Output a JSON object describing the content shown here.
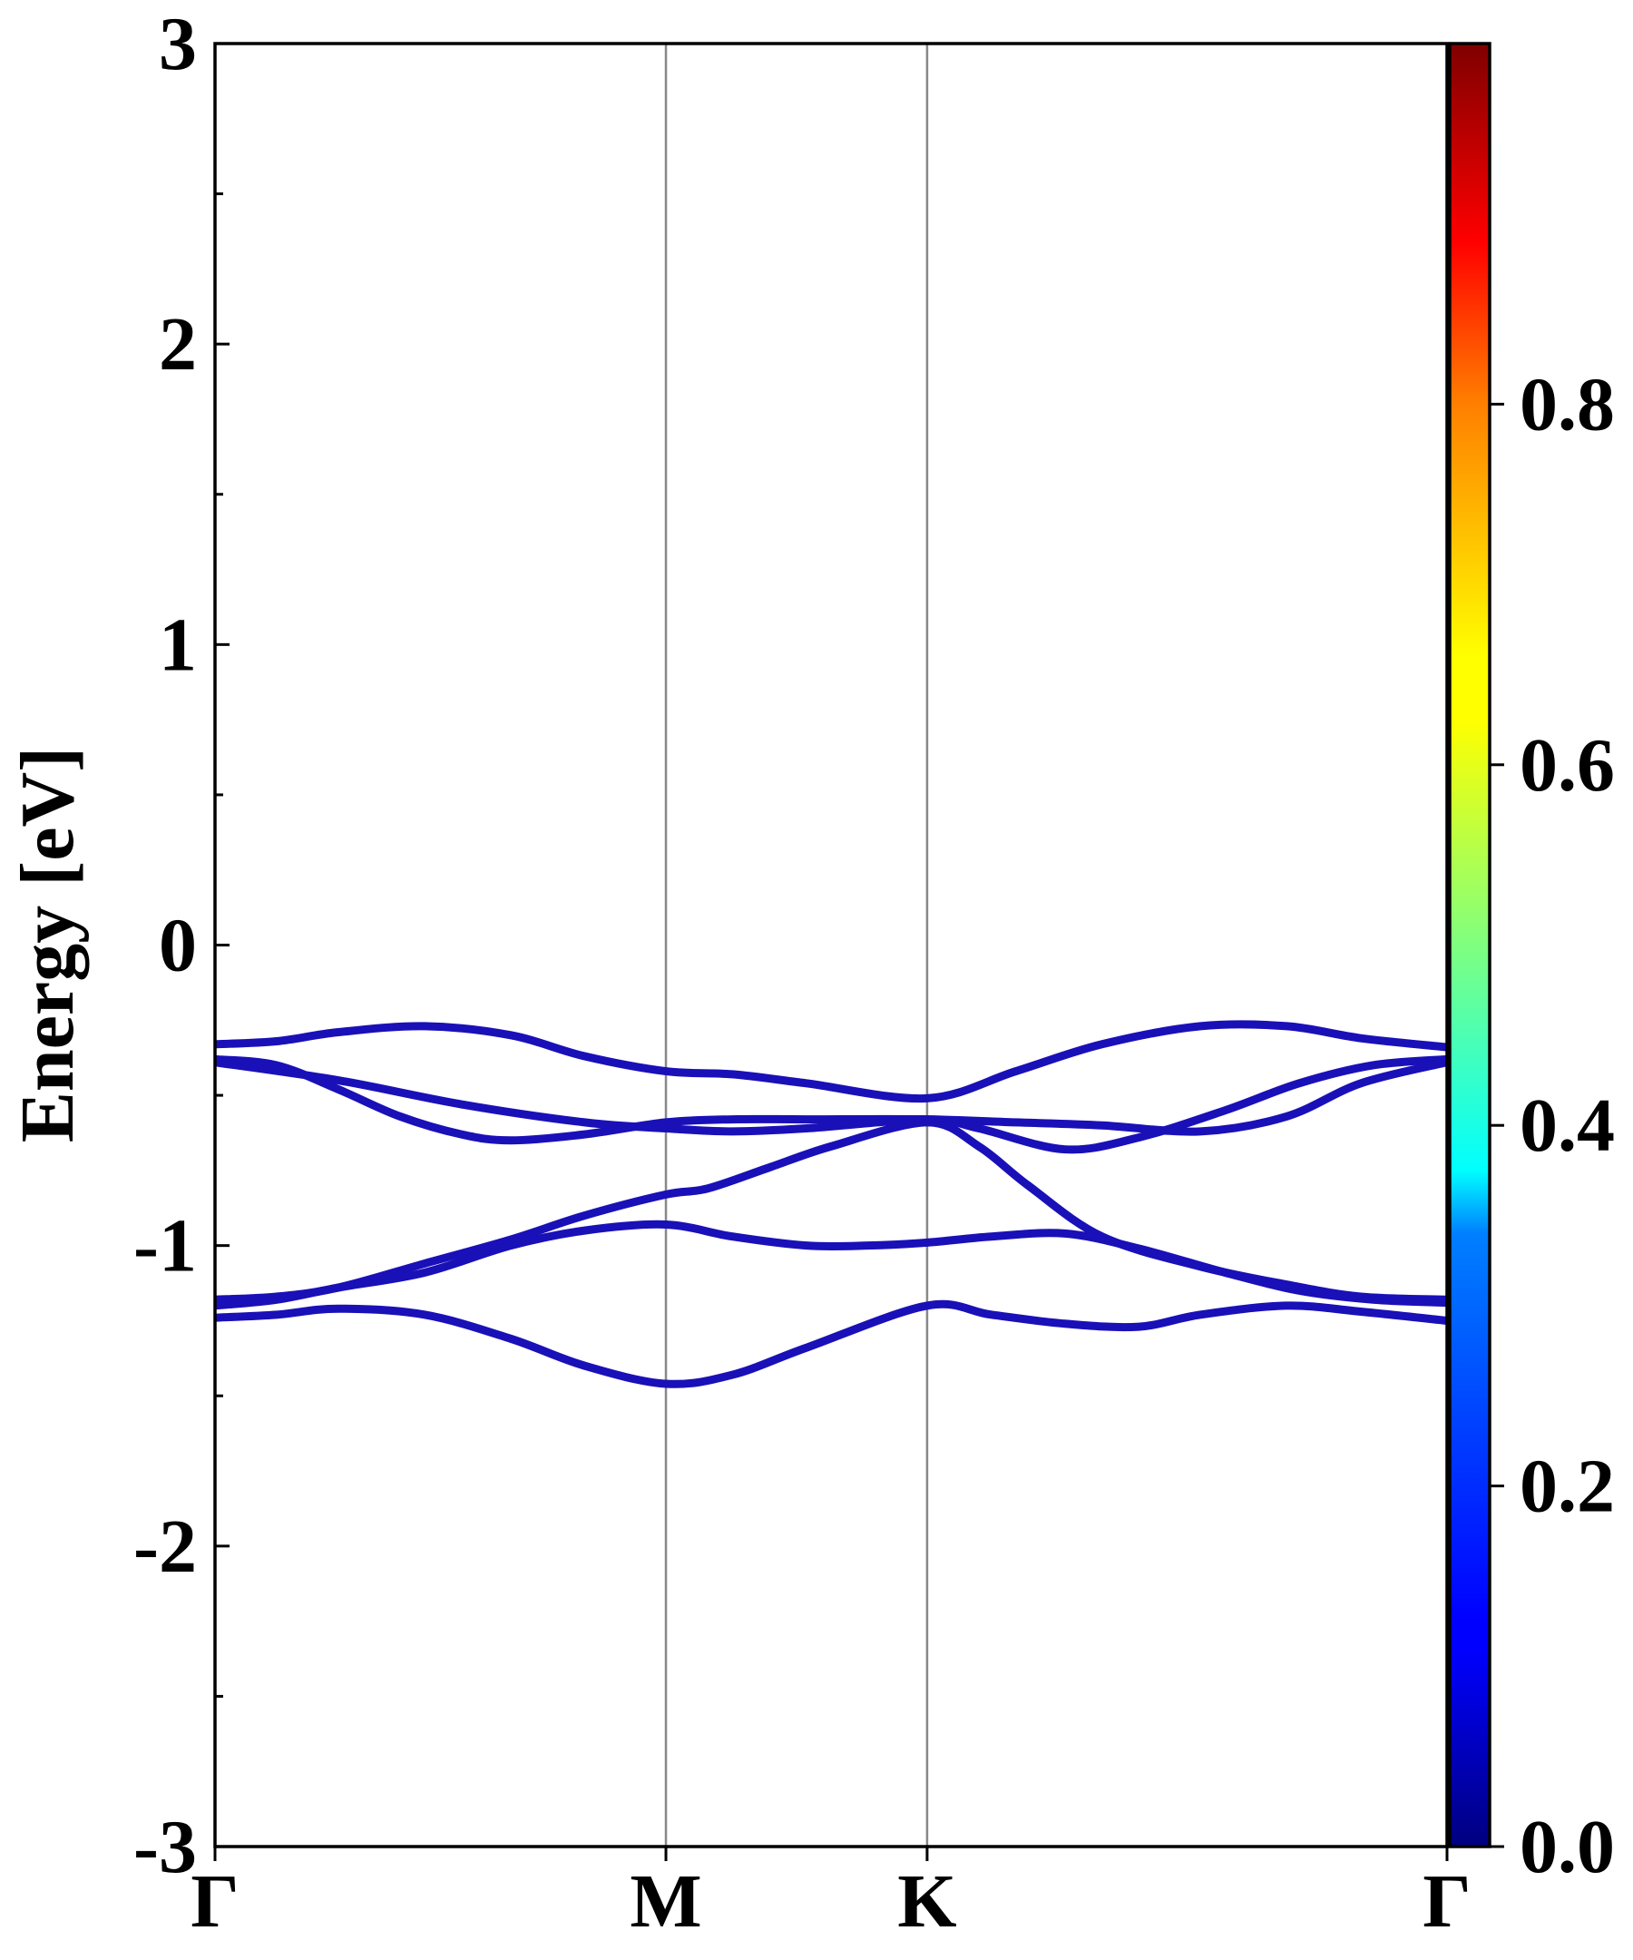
{
  "chart_data": {
    "type": "line",
    "title": "",
    "xlabel": "",
    "ylabel": "Energy [eV]",
    "ylim": [
      -3,
      3
    ],
    "yticks": [
      -3,
      -2,
      -1,
      0,
      1,
      2,
      3
    ],
    "ytick_labels": [
      "-3",
      "-2",
      "-1",
      "0",
      "1",
      "2",
      "3"
    ],
    "xlim": [
      0,
      1
    ],
    "kpath_ticks": [
      0,
      0.366,
      0.578,
      1.0
    ],
    "kpath_labels": [
      "Γ",
      "M",
      "K",
      "Γ"
    ],
    "grid": false,
    "band_color": "#1a10b8",
    "colorbar": {
      "range": [
        0.0,
        1.0
      ],
      "ticks": [
        0.0,
        0.2,
        0.4,
        0.6,
        0.8
      ],
      "tick_labels": [
        "0.0",
        "0.2",
        "0.4",
        "0.6",
        "0.8"
      ],
      "colormap": "jet"
    },
    "series": [
      {
        "x": [
          0,
          0.05,
          0.1,
          0.17,
          0.24,
          0.3,
          0.366,
          0.42,
          0.48,
          0.578,
          0.65,
          0.72,
          0.8,
          0.87,
          0.93,
          1.0
        ],
        "y": [
          -0.33,
          -0.32,
          -0.29,
          -0.27,
          -0.3,
          -0.37,
          -0.42,
          -0.43,
          -0.46,
          -0.51,
          -0.42,
          -0.33,
          -0.27,
          -0.27,
          -0.31,
          -0.34
        ]
      },
      {
        "x": [
          0,
          0.05,
          0.1,
          0.15,
          0.2,
          0.24,
          0.3,
          0.366,
          0.42,
          0.48,
          0.578,
          0.65,
          0.72,
          0.8,
          0.87,
          0.93,
          1.0
        ],
        "y": [
          -0.38,
          -0.4,
          -0.48,
          -0.57,
          -0.63,
          -0.65,
          -0.63,
          -0.59,
          -0.58,
          -0.58,
          -0.58,
          -0.59,
          -0.6,
          -0.62,
          -0.57,
          -0.46,
          -0.39
        ]
      },
      {
        "x": [
          0,
          0.1,
          0.2,
          0.3,
          0.366,
          0.42,
          0.48,
          0.578,
          0.62,
          0.69,
          0.75,
          0.82,
          0.88,
          0.94,
          1.0
        ],
        "y": [
          -0.39,
          -0.45,
          -0.53,
          -0.59,
          -0.61,
          -0.62,
          -0.61,
          -0.58,
          -0.61,
          -0.68,
          -0.64,
          -0.55,
          -0.46,
          -0.4,
          -0.38
        ]
      },
      {
        "x": [
          0,
          0.05,
          0.1,
          0.17,
          0.24,
          0.3,
          0.366,
          0.4,
          0.45,
          0.5,
          0.578,
          0.62,
          0.66,
          0.72,
          0.8,
          0.87,
          0.93,
          1.0
        ],
        "y": [
          -1.18,
          -1.17,
          -1.14,
          -1.06,
          -0.98,
          -0.9,
          -0.83,
          -0.81,
          -0.74,
          -0.67,
          -0.59,
          -0.67,
          -0.8,
          -0.97,
          -1.07,
          -1.13,
          -1.17,
          -1.18
        ]
      },
      {
        "x": [
          0,
          0.05,
          0.1,
          0.17,
          0.24,
          0.3,
          0.366,
          0.42,
          0.48,
          0.53,
          0.578,
          0.63,
          0.69,
          0.75,
          0.82,
          0.88,
          0.94,
          1.0
        ],
        "y": [
          -1.2,
          -1.18,
          -1.14,
          -1.09,
          -1.0,
          -0.95,
          -0.93,
          -0.97,
          -1.0,
          -1.0,
          -0.99,
          -0.97,
          -0.96,
          -1.01,
          -1.09,
          -1.15,
          -1.18,
          -1.19
        ]
      },
      {
        "x": [
          0,
          0.05,
          0.1,
          0.17,
          0.24,
          0.3,
          0.366,
          0.42,
          0.48,
          0.578,
          0.63,
          0.69,
          0.75,
          0.8,
          0.87,
          0.93,
          1.0
        ],
        "y": [
          -1.24,
          -1.23,
          -1.21,
          -1.23,
          -1.31,
          -1.4,
          -1.46,
          -1.43,
          -1.34,
          -1.2,
          -1.23,
          -1.26,
          -1.27,
          -1.23,
          -1.2,
          -1.22,
          -1.25
        ]
      }
    ]
  }
}
